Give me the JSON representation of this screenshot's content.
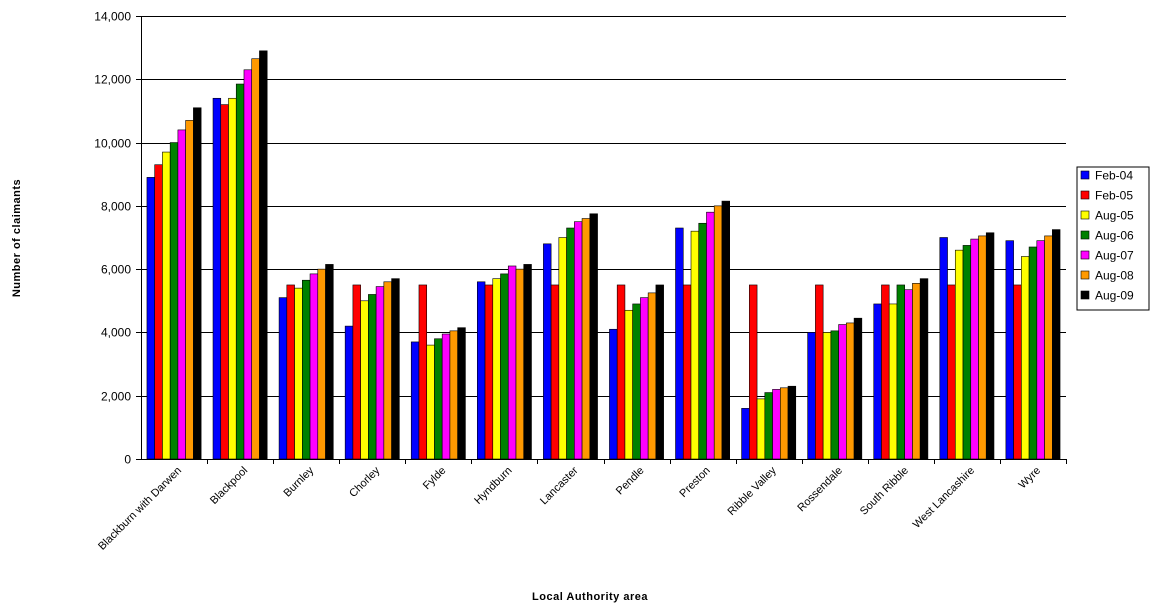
{
  "chart_data": {
    "type": "bar",
    "xlabel": "Local Authority area",
    "ylabel": "Number of claimants",
    "ylim": [
      0,
      14000
    ],
    "yticks": [
      0,
      2000,
      4000,
      6000,
      8000,
      10000,
      12000,
      14000
    ],
    "ytick_labels": [
      "0",
      "2,000",
      "4,000",
      "6,000",
      "8,000",
      "10,000",
      "12,000",
      "14,000"
    ],
    "grid": true,
    "legend_position": "right",
    "categories": [
      "Blackburn with Darwen",
      "Blackpool",
      "Burnley",
      "Chorley",
      "Fylde",
      "Hyndburn",
      "Lancaster",
      "Pendle",
      "Preston",
      "Ribble Valley",
      "Rossendale",
      "South Ribble",
      "West Lancashire",
      "Wyre"
    ],
    "series": [
      {
        "name": "Feb-04",
        "color": "#0000ff",
        "values": [
          8900,
          11400,
          5100,
          4200,
          3700,
          5600,
          6800,
          4100,
          7300,
          1600,
          4000,
          4900,
          7000,
          6900
        ]
      },
      {
        "name": "Feb-05",
        "color": "#ff0000",
        "values": [
          9300,
          11200,
          5500,
          5500,
          5500,
          5500,
          5500,
          5500,
          5500,
          5500,
          5500,
          5500,
          5500,
          5500
        ]
      },
      {
        "name": "Aug-05",
        "color": "#ffff00",
        "values": [
          9700,
          11400,
          5400,
          5000,
          3600,
          5700,
          7000,
          4700,
          7200,
          1900,
          4000,
          4900,
          6600,
          6400
        ]
      },
      {
        "name": "Aug-06",
        "color": "#008000",
        "values": [
          10000,
          11850,
          5650,
          5200,
          3800,
          5850,
          7300,
          4900,
          7450,
          2100,
          4050,
          5500,
          6750,
          6700
        ]
      },
      {
        "name": "Aug-07",
        "color": "#ff00ff",
        "values": [
          10400,
          12300,
          5850,
          5450,
          3950,
          6100,
          7500,
          5100,
          7800,
          2200,
          4250,
          5350,
          6950,
          6900
        ]
      },
      {
        "name": "Aug-08",
        "color": "#ff9900",
        "values": [
          10700,
          12650,
          6000,
          5600,
          4050,
          6000,
          7600,
          5250,
          8000,
          2250,
          4300,
          5550,
          7050,
          7050
        ]
      },
      {
        "name": "Aug-09",
        "color": "#000000",
        "values": [
          11100,
          12900,
          6150,
          5700,
          4150,
          6150,
          7750,
          5500,
          8150,
          2300,
          4450,
          5700,
          7150,
          7250
        ]
      }
    ]
  }
}
